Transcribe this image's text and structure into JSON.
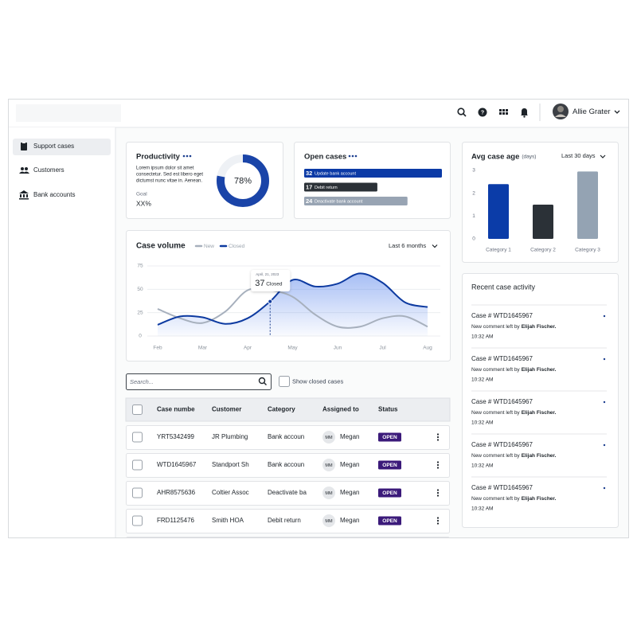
{
  "header": {
    "user_name": "Allie Grater"
  },
  "sidebar": {
    "items": [
      "Support cases",
      "Customers",
      "Bank accounts"
    ]
  },
  "productivity": {
    "title": "Productivity",
    "description_lines": [
      "Lorem ipsum dolor sit amet",
      "consectetur. Sed est libero eget",
      "dictumst nunc vitae in. Aenean."
    ],
    "goal_label": "Goal",
    "goal_value": "XX%",
    "percent": 78,
    "percent_label": "78%",
    "color": "#1a44a8"
  },
  "open_cases": {
    "title": "Open cases",
    "items": [
      {
        "count": 32,
        "label": "Update bank account",
        "color": "#0b3aa6"
      },
      {
        "count": 17,
        "label": "Debit return",
        "color": "#2b3137"
      },
      {
        "count": 24,
        "label": "Deactivate bank account",
        "color": "#98a4b3"
      }
    ]
  },
  "avg_case_age": {
    "title": "Avg case age",
    "unit": "(days)",
    "period": "Last 30 days",
    "chart": {
      "type": "bar",
      "categories": [
        "Category 1",
        "Category 2",
        "Category 3"
      ],
      "values": [
        2.4,
        1.5,
        2.95
      ],
      "colors": [
        "#0b3ca8",
        "#2b3137",
        "#94a3b3"
      ],
      "ylim": [
        0,
        3
      ],
      "yticks": [
        0,
        1,
        2,
        3
      ],
      "grid": false
    }
  },
  "case_volume": {
    "title": "Case volume",
    "period": "Last 6 months",
    "chart": {
      "type": "line",
      "categories": [
        "Feb",
        null,
        "Mar",
        null,
        "Apr",
        null,
        "May",
        null,
        "Jun",
        null,
        "Jul",
        null,
        "Aug"
      ],
      "series": [
        {
          "name": "New",
          "color": "#a7b0bd",
          "values": [
            29,
            19,
            14,
            26,
            49,
            49,
            42,
            23,
            10,
            10,
            19,
            21,
            10
          ]
        },
        {
          "name": "Closed",
          "color": "#0d3aa0",
          "values": [
            12,
            21,
            20,
            13,
            19,
            37,
            60,
            53,
            56,
            67,
            57,
            36,
            31
          ]
        }
      ],
      "ylim": [
        0,
        75
      ],
      "yticks": [
        0,
        25,
        50,
        75
      ],
      "grid": true,
      "tooltip": {
        "date": "April, 21, 2023",
        "value": 37,
        "label": "Closed"
      }
    }
  },
  "search": {
    "placeholder": "Search...",
    "checkbox_label": "Show closed cases"
  },
  "table": {
    "columns": [
      "Case numbe",
      "Customer",
      "Category",
      "Assigned to",
      "Status"
    ],
    "rows": [
      {
        "case": "YRT5342499",
        "customer": "JR Plumbing",
        "category": "Bank accoun",
        "initials": "MM",
        "assignee": "Megan",
        "status": "OPEN"
      },
      {
        "case": "WTD1645967",
        "customer": "Standport Sh",
        "category": "Bank accoun",
        "initials": "MM",
        "assignee": "Megan",
        "status": "OPEN"
      },
      {
        "case": "AHR8575636",
        "customer": "Coltier Assoc",
        "category": "Deactivate ba",
        "initials": "MM",
        "assignee": "Megan",
        "status": "OPEN"
      },
      {
        "case": "FRD1125476",
        "customer": "Smith HOA",
        "category": "Debit return",
        "initials": "MM",
        "assignee": "Megan",
        "status": "OPEN"
      }
    ]
  },
  "recent_activity": {
    "title": "Recent case activity",
    "items": [
      {
        "case": "Case # WTD1645967",
        "comment": "New comment left by",
        "author": "Elijah Fischer.",
        "time": "10:32 AM"
      },
      {
        "case": "Case # WTD1645967",
        "comment": "New comment left by",
        "author": "Elijah Fischer.",
        "time": "10:32 AM"
      },
      {
        "case": "Case # WTD1645967",
        "comment": "New comment left by",
        "author": "Elijah Fischer.",
        "time": "10:32 AM"
      },
      {
        "case": "Case # WTD1645967",
        "comment": "New comment left by",
        "author": "Elijah Fischer.",
        "time": "10:32 AM"
      },
      {
        "case": "Case # WTD1645967",
        "comment": "New comment left by",
        "author": "Elijah Fischer.",
        "time": "10:32 AM"
      }
    ]
  }
}
